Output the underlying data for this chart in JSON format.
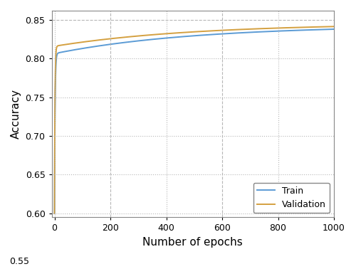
{
  "title": "",
  "xlabel": "Number of epochs",
  "ylabel": "Accuracy",
  "xlim": [
    -10,
    1000
  ],
  "ylim": [
    0.595,
    0.862
  ],
  "xticks": [
    0,
    200,
    400,
    600,
    800,
    1000
  ],
  "yticks": [
    0.6,
    0.65,
    0.7,
    0.75,
    0.8,
    0.85
  ],
  "train_color": "#5b9bd5",
  "val_color": "#d4a040",
  "grid_color": "#b0b0b0",
  "background_color": "#ffffff",
  "legend_labels": [
    "Train",
    "Validation"
  ],
  "epochs": 1000,
  "train_plateau": 0.843,
  "val_plateau": 0.8455,
  "y_bottom_label": "0.55",
  "linewidth": 1.4
}
